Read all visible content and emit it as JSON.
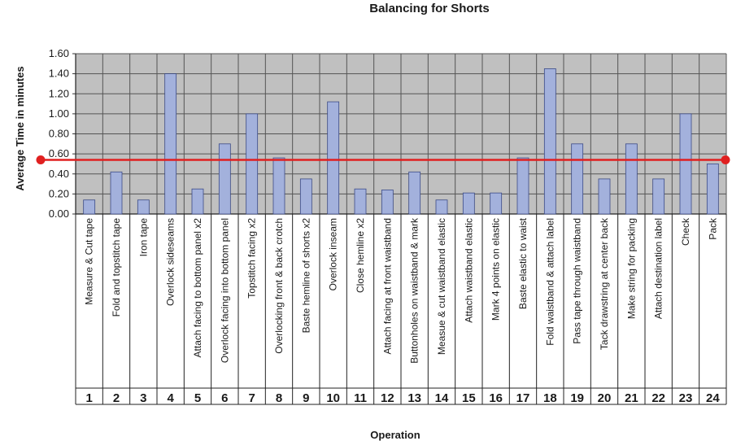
{
  "chart_data": {
    "type": "bar",
    "title": "Balancing for Shorts",
    "xlabel": "Operation",
    "ylabel": "Average Time in minutes",
    "ylim": [
      0,
      1.6
    ],
    "yticks": [
      "0.00",
      "0.20",
      "0.40",
      "0.60",
      "0.80",
      "1.00",
      "1.20",
      "1.40",
      "1.60"
    ],
    "grid": true,
    "bar_color": "#a3b1dc",
    "bar_edge_color": "#3b4a86",
    "plot_bg": "#c0c0c0",
    "reference_line": {
      "value": 0.54,
      "color": "#e02020"
    },
    "categories": [
      "Measure & Cut tape",
      "Fold and topstitch tape",
      "Iron tape",
      "Overlock sideseams",
      "Attach facing to bottom panel x2",
      "Overlock facing into bottom panel",
      "Topstitch facing x2",
      "Overlocking front & back crotch",
      "Baste hemline of shorts x2",
      "Overlock inseam",
      "Close hemline x2",
      "Attach facing at front waistband",
      "Buttonholes on waistband & mark",
      "Measue & cut waistband elastic",
      "Attach waistband elastic",
      "Mark 4 points on elastic",
      "Baste elastic to waist",
      "Fold waistband & attach label",
      "Pass tape through waistband",
      "Tack drawstring at center back",
      "Make string for packing",
      "Attach destination label",
      "Check",
      "Pack"
    ],
    "numbers": [
      "1",
      "2",
      "3",
      "4",
      "5",
      "6",
      "7",
      "8",
      "9",
      "10",
      "11",
      "12",
      "13",
      "14",
      "15",
      "16",
      "17",
      "18",
      "19",
      "20",
      "21",
      "22",
      "23",
      "24"
    ],
    "values": [
      0.14,
      0.42,
      0.14,
      1.4,
      0.25,
      0.7,
      1.0,
      0.56,
      0.35,
      1.12,
      0.25,
      0.24,
      0.42,
      0.14,
      0.21,
      0.21,
      0.56,
      1.45,
      0.7,
      0.35,
      0.7,
      0.35,
      1.0,
      0.5
    ]
  }
}
